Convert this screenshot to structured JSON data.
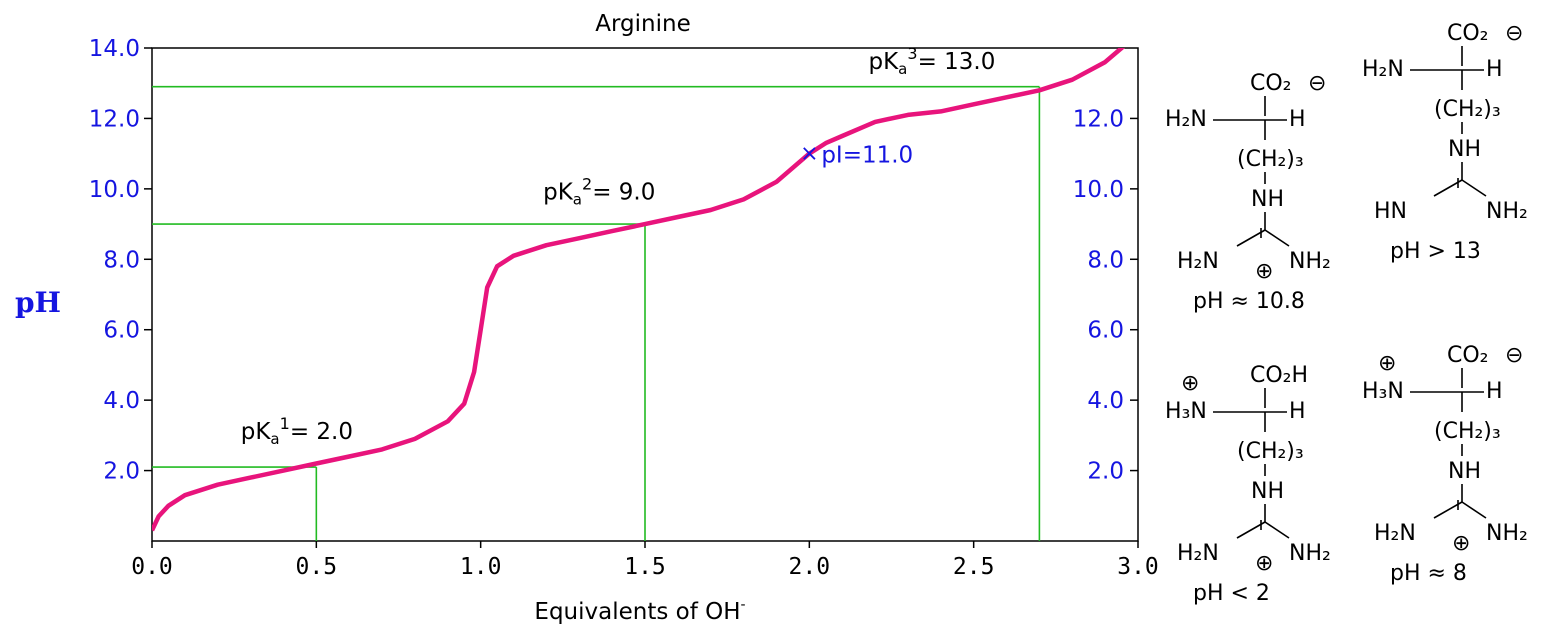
{
  "chart_data": {
    "type": "line",
    "title": "Arginine",
    "xlabel": "Equivalents of OH",
    "xlabel_sup": "-",
    "ylabel": "pH",
    "xlim": [
      0,
      3
    ],
    "ylim": [
      0,
      14
    ],
    "grid": false,
    "x_ticks": [
      "0.0",
      "0.5",
      "1.0",
      "1.5",
      "2.0",
      "2.5",
      "3.0"
    ],
    "y_ticks_left": [
      "2.0",
      "4.0",
      "6.0",
      "8.0",
      "10.0",
      "12.0",
      "14.0"
    ],
    "y_ticks_right": [
      "2.0",
      "4.0",
      "6.0",
      "8.0",
      "10.0",
      "12.0"
    ],
    "curve_color": "#e8147c",
    "guide_color": "#22bb22",
    "tick_label_color": "#1515e0",
    "series": [
      {
        "x": [
          0.0,
          0.02,
          0.05,
          0.1,
          0.2,
          0.3,
          0.4,
          0.5,
          0.6,
          0.7,
          0.8,
          0.9,
          0.95,
          0.98,
          1.0,
          1.02,
          1.05,
          1.1,
          1.2,
          1.3,
          1.4,
          1.5,
          1.6,
          1.7,
          1.8,
          1.9,
          1.95,
          2.0,
          2.05,
          2.1,
          2.2,
          2.3,
          2.4,
          2.5,
          2.6,
          2.7,
          2.8,
          2.9,
          2.95,
          3.0
        ],
        "y": [
          0.3,
          0.7,
          1.0,
          1.3,
          1.6,
          1.8,
          2.0,
          2.2,
          2.4,
          2.6,
          2.9,
          3.4,
          3.9,
          4.8,
          6.0,
          7.2,
          7.8,
          8.1,
          8.4,
          8.6,
          8.8,
          9.0,
          9.2,
          9.4,
          9.7,
          10.2,
          10.6,
          11.0,
          11.3,
          11.5,
          11.9,
          12.1,
          12.2,
          12.4,
          12.6,
          12.8,
          13.1,
          13.6,
          14.0,
          14.4
        ]
      }
    ],
    "guides": [
      {
        "x": 0.5,
        "y": 2.1
      },
      {
        "x": 1.5,
        "y": 9.0
      },
      {
        "x": 2.7,
        "y": 12.9
      }
    ],
    "annotations": [
      {
        "base": "pK",
        "sub": "a",
        "sup": "1",
        "text": "= 2.0",
        "x": 0.27,
        "y": 2.9
      },
      {
        "base": "pK",
        "sub": "a",
        "sup": "2",
        "text": "= 9.0",
        "x": 1.19,
        "y": 9.7
      },
      {
        "base": "pK",
        "sub": "a",
        "sup": "3",
        "text": "= 13.0",
        "x": 2.18,
        "y": 13.4
      }
    ],
    "pI": {
      "label": "pI=11.0",
      "marker": "×",
      "x": 2.0,
      "y": 11.0
    }
  },
  "structures": [
    {
      "caption": "pH ≈ 10.8",
      "acid": "CO₂",
      "acid_charge": "⊖",
      "amine": "H₂N",
      "amine_charge": "",
      "h": "H",
      "chain": "(CH₂)₃",
      "nh": "NH",
      "left_n": "H₂N",
      "right_n": "NH₂",
      "center_charge": "⊕"
    },
    {
      "caption": "pH > 13",
      "acid": "CO₂",
      "acid_charge": "⊖",
      "amine": "H₂N",
      "amine_charge": "",
      "h": "H",
      "chain": "(CH₂)₃",
      "nh": "NH",
      "left_n": "HN",
      "right_n": "NH₂",
      "center_charge": ""
    },
    {
      "caption": "pH < 2",
      "acid": "CO₂H",
      "acid_charge": "",
      "amine": "H₃N",
      "amine_charge": "⊕",
      "h": "H",
      "chain": "(CH₂)₃",
      "nh": "NH",
      "left_n": "H₂N",
      "right_n": "NH₂",
      "center_charge": "⊕"
    },
    {
      "caption": "pH ≈ 8",
      "acid": "CO₂",
      "acid_charge": "⊖",
      "amine": "H₃N",
      "amine_charge": "⊕",
      "h": "H",
      "chain": "(CH₂)₃",
      "nh": "NH",
      "left_n": "H₂N",
      "right_n": "NH₂",
      "center_charge": "⊕"
    }
  ]
}
